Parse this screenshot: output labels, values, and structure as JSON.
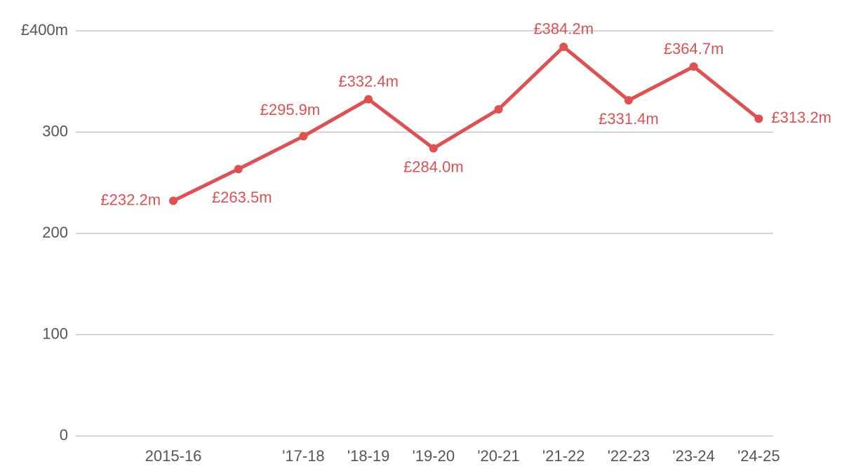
{
  "chart_data": {
    "type": "line",
    "categories": [
      "2015-16",
      null,
      "'17-18",
      "'18-19",
      "'19-20",
      "'20-21",
      "'21-22",
      "'22-23",
      "'23-24",
      "'24-25"
    ],
    "series": [
      {
        "color": "#e05050",
        "values": [
          232.2,
          263.5,
          295.9,
          332.4,
          284.0,
          322.5,
          384.2,
          331.4,
          364.7,
          313.2
        ],
        "value_labels": [
          "£232.2m",
          "£263.5m",
          "£295.9m",
          "£332.4m",
          "£284.0m",
          null,
          "£384.2m",
          "£331.4m",
          "£364.7m",
          "£313.2m"
        ]
      }
    ],
    "ylim": [
      0,
      400
    ],
    "yticks": [
      0,
      100,
      200,
      300,
      {
        "value": 400,
        "label": "£400m"
      }
    ],
    "grid": true
  }
}
